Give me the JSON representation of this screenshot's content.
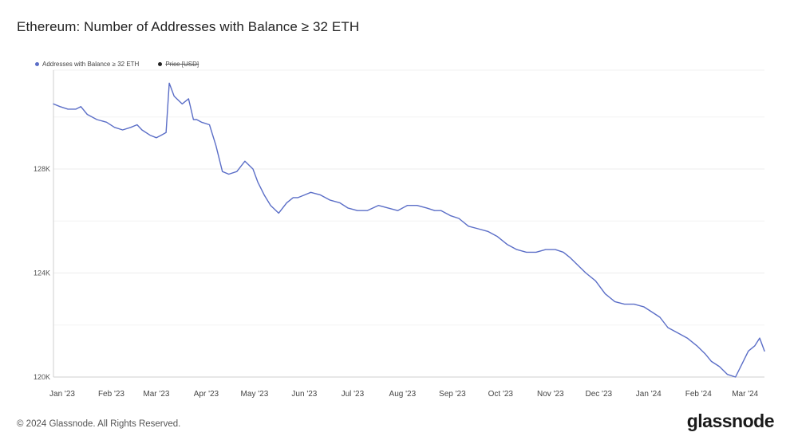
{
  "title": "Ethereum: Number of Addresses with Balance ≥ 32 ETH",
  "legend": [
    {
      "label": "Addresses with Balance ≥ 32 ETH",
      "color": "#5b6ec7",
      "hidden": false
    },
    {
      "label": "Price [USD]",
      "color": "#222222",
      "hidden": true
    }
  ],
  "footer": {
    "copyright": "© 2024 Glassnode. All Rights Reserved.",
    "logo": "glassnode"
  },
  "chart_data": {
    "type": "line",
    "title": "Ethereum: Number of Addresses with Balance ≥ 32 ETH",
    "xlabel": "",
    "ylabel": "",
    "x_ticks": [
      "Jan '23",
      "Feb '23",
      "Mar '23",
      "Apr '23",
      "May '23",
      "Jun '23",
      "Jul '23",
      "Aug '23",
      "Sep '23",
      "Oct '23",
      "Nov '23",
      "Dec '23",
      "Jan '24",
      "Feb '24",
      "Mar '24"
    ],
    "y_ticks": [
      "120K",
      "124K",
      "128K"
    ],
    "y_tick_values": [
      120000,
      124000,
      128000
    ],
    "ylim": [
      120000,
      131800
    ],
    "xlim": [
      "2023-01-01",
      "2024-03-18"
    ],
    "grid": true,
    "legend_position": "top-left",
    "series": [
      {
        "name": "Addresses with Balance ≥ 32 ETH",
        "color": "#5b6ec7",
        "x": [
          "2023-01-01",
          "2023-01-05",
          "2023-01-10",
          "2023-01-15",
          "2023-01-18",
          "2023-01-22",
          "2023-01-28",
          "2023-02-03",
          "2023-02-08",
          "2023-02-13",
          "2023-02-18",
          "2023-02-22",
          "2023-02-25",
          "2023-03-02",
          "2023-03-06",
          "2023-03-09",
          "2023-03-12",
          "2023-03-14",
          "2023-03-17",
          "2023-03-22",
          "2023-03-26",
          "2023-03-29",
          "2023-03-31",
          "2023-04-03",
          "2023-04-08",
          "2023-04-12",
          "2023-04-16",
          "2023-04-20",
          "2023-04-25",
          "2023-04-30",
          "2023-05-05",
          "2023-05-08",
          "2023-05-12",
          "2023-05-16",
          "2023-05-21",
          "2023-05-26",
          "2023-05-30",
          "2023-06-02",
          "2023-06-06",
          "2023-06-10",
          "2023-06-16",
          "2023-06-22",
          "2023-06-28",
          "2023-07-03",
          "2023-07-09",
          "2023-07-15",
          "2023-07-22",
          "2023-07-28",
          "2023-08-03",
          "2023-08-09",
          "2023-08-15",
          "2023-08-21",
          "2023-08-26",
          "2023-08-30",
          "2023-09-05",
          "2023-09-10",
          "2023-09-16",
          "2023-09-22",
          "2023-09-28",
          "2023-10-04",
          "2023-10-10",
          "2023-10-16",
          "2023-10-22",
          "2023-10-28",
          "2023-11-03",
          "2023-11-09",
          "2023-11-14",
          "2023-11-18",
          "2023-11-23",
          "2023-11-28",
          "2023-12-04",
          "2023-12-10",
          "2023-12-16",
          "2023-12-22",
          "2023-12-28",
          "2024-01-03",
          "2024-01-08",
          "2024-01-13",
          "2024-01-18",
          "2024-01-24",
          "2024-01-30",
          "2024-02-05",
          "2024-02-10",
          "2024-02-14",
          "2024-02-19",
          "2024-02-24",
          "2024-02-29",
          "2024-03-04",
          "2024-03-08",
          "2024-03-12",
          "2024-03-15",
          "2024-03-18"
        ],
        "values": [
          130500,
          130400,
          130300,
          130300,
          130400,
          130100,
          129900,
          129800,
          129600,
          129500,
          129600,
          129700,
          129500,
          129300,
          129200,
          129300,
          129400,
          131300,
          130800,
          130500,
          130700,
          129900,
          129900,
          129800,
          129700,
          128900,
          127900,
          127800,
          127900,
          128300,
          128000,
          127500,
          127000,
          126600,
          126300,
          126700,
          126900,
          126900,
          127000,
          127100,
          127000,
          126800,
          126700,
          126500,
          126400,
          126400,
          126600,
          126500,
          126400,
          126600,
          126600,
          126500,
          126400,
          126400,
          126200,
          126100,
          125800,
          125700,
          125600,
          125400,
          125100,
          124900,
          124800,
          124800,
          124900,
          124900,
          124800,
          124600,
          124300,
          124000,
          123700,
          123200,
          122900,
          122800,
          122800,
          122700,
          122500,
          122300,
          121900,
          121700,
          121500,
          121200,
          120900,
          120600,
          120400,
          120100,
          120000,
          120500,
          121000,
          121200,
          121500,
          121000
        ]
      }
    ]
  }
}
